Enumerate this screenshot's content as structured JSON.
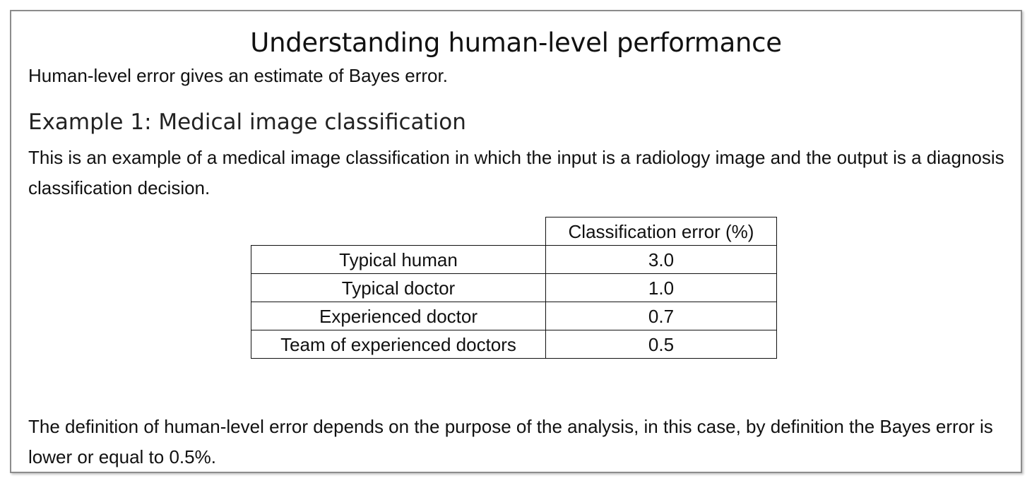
{
  "title": "Understanding human-level performance",
  "intro": "Human-level error gives an estimate of Bayes error.",
  "example": {
    "heading": "Example 1: Medical image classification",
    "description": "This is an example of a medical image classification in which the input is a radiology image and the output is a diagnosis classification decision."
  },
  "table": {
    "header": "Classification error (%)",
    "rows": [
      {
        "label": "Typical human",
        "value": "3.0"
      },
      {
        "label": "Typical doctor",
        "value": "1.0"
      },
      {
        "label": "Experienced doctor",
        "value": "0.7"
      },
      {
        "label": "Team of experienced doctors",
        "value": "0.5"
      }
    ]
  },
  "conclusion": "The definition of human-level error depends on the purpose of the analysis, in this case, by definition the Bayes error is lower or equal to 0.5%."
}
